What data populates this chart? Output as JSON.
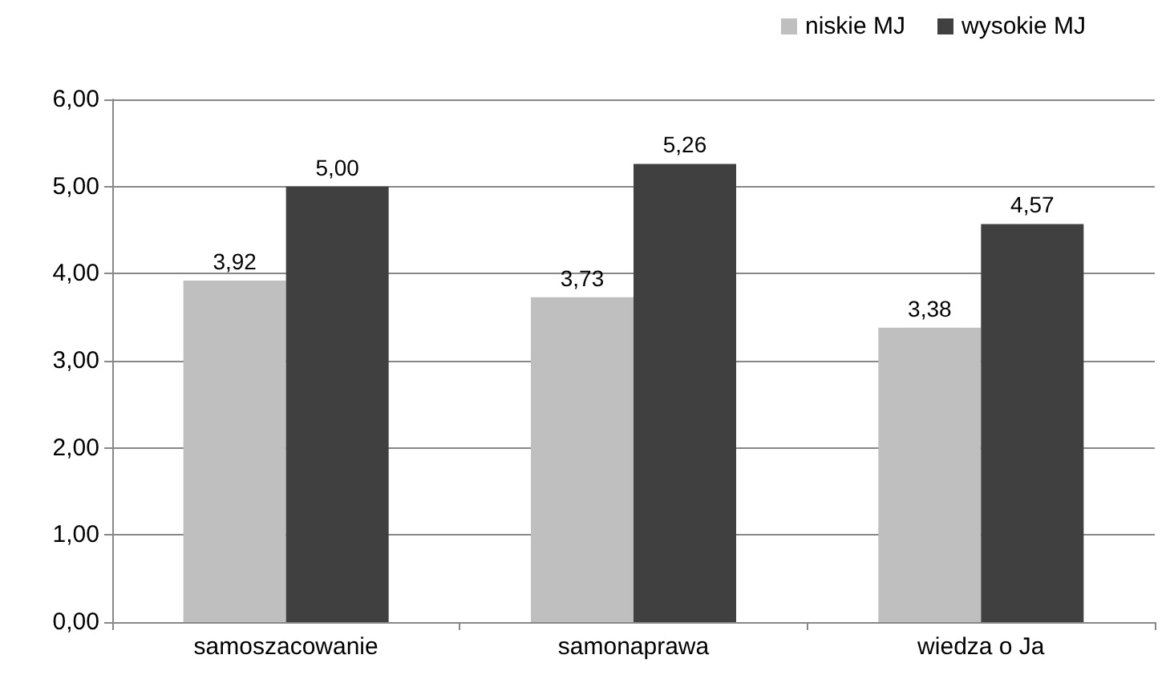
{
  "chart_data": {
    "type": "bar",
    "categories": [
      "samoszacowanie",
      "samonaprawa",
      "wiedza o Ja"
    ],
    "series": [
      {
        "name": "niskie MJ",
        "color": "#bfbfbf",
        "values": [
          3.92,
          3.73,
          3.38
        ],
        "value_labels": [
          "3,92",
          "3,73",
          "3,38"
        ]
      },
      {
        "name": "wysokie MJ",
        "color": "#404040",
        "values": [
          5.0,
          5.26,
          4.57
        ],
        "value_labels": [
          "5,00",
          "5,26",
          "4,57"
        ]
      }
    ],
    "ylim": [
      0,
      6
    ],
    "yticks": [
      {
        "value": 0,
        "label": "0,00"
      },
      {
        "value": 1,
        "label": "1,00"
      },
      {
        "value": 2,
        "label": "2,00"
      },
      {
        "value": 3,
        "label": "3,00"
      },
      {
        "value": 4,
        "label": "4,00"
      },
      {
        "value": 5,
        "label": "5,00"
      },
      {
        "value": 6,
        "label": "6,00"
      }
    ],
    "grid": "y",
    "legend": "top right"
  }
}
